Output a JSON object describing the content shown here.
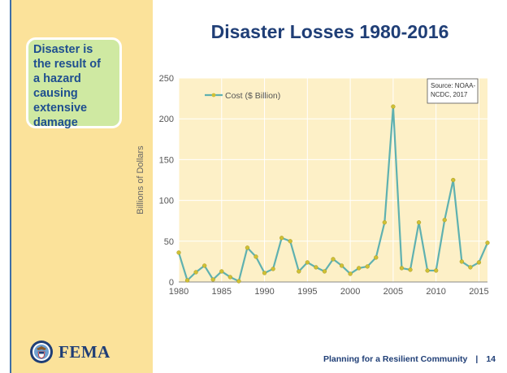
{
  "slide": {
    "callout_lines": [
      "Disaster is",
      "the result of",
      "a hazard",
      "causing",
      "extensive",
      "damage"
    ],
    "title": "Disaster Losses 1980-2016",
    "footer_text": "Planning for a Resilient Community",
    "footer_separator": "|",
    "page_number": "14",
    "logo_text": "FEMA"
  },
  "chart_data": {
    "type": "line",
    "title": "Disaster Losses 1980-2016",
    "xlabel": "",
    "ylabel": "Billions of Dollars",
    "xlim": [
      1980,
      2016
    ],
    "ylim": [
      0,
      250
    ],
    "xticks": [
      1980,
      1985,
      1990,
      1995,
      2000,
      2005,
      2010,
      2015
    ],
    "yticks": [
      0,
      50,
      100,
      150,
      200,
      250
    ],
    "grid": true,
    "legend_position": "top-left",
    "annotation": [
      "Source: NOAA-",
      "NCDC, 2017"
    ],
    "line_color": "#5fb1b0",
    "marker_color": "#cfc035",
    "plot_background": "#fdf0c7",
    "series": [
      {
        "name": "Cost ($ Billion)",
        "x": [
          1980,
          1981,
          1982,
          1983,
          1984,
          1985,
          1986,
          1987,
          1988,
          1989,
          1990,
          1991,
          1992,
          1993,
          1994,
          1995,
          1996,
          1997,
          1998,
          1999,
          2000,
          2001,
          2002,
          2003,
          2004,
          2005,
          2006,
          2007,
          2008,
          2009,
          2010,
          2011,
          2012,
          2013,
          2014,
          2015,
          2016
        ],
        "values": [
          36,
          2,
          12,
          20,
          3,
          13,
          6,
          1,
          42,
          31,
          11,
          16,
          54,
          50,
          13,
          24,
          18,
          13,
          28,
          20,
          10,
          17,
          19,
          30,
          73,
          215,
          17,
          15,
          73,
          14,
          14,
          76,
          125,
          25,
          18,
          24,
          48
        ]
      }
    ]
  }
}
